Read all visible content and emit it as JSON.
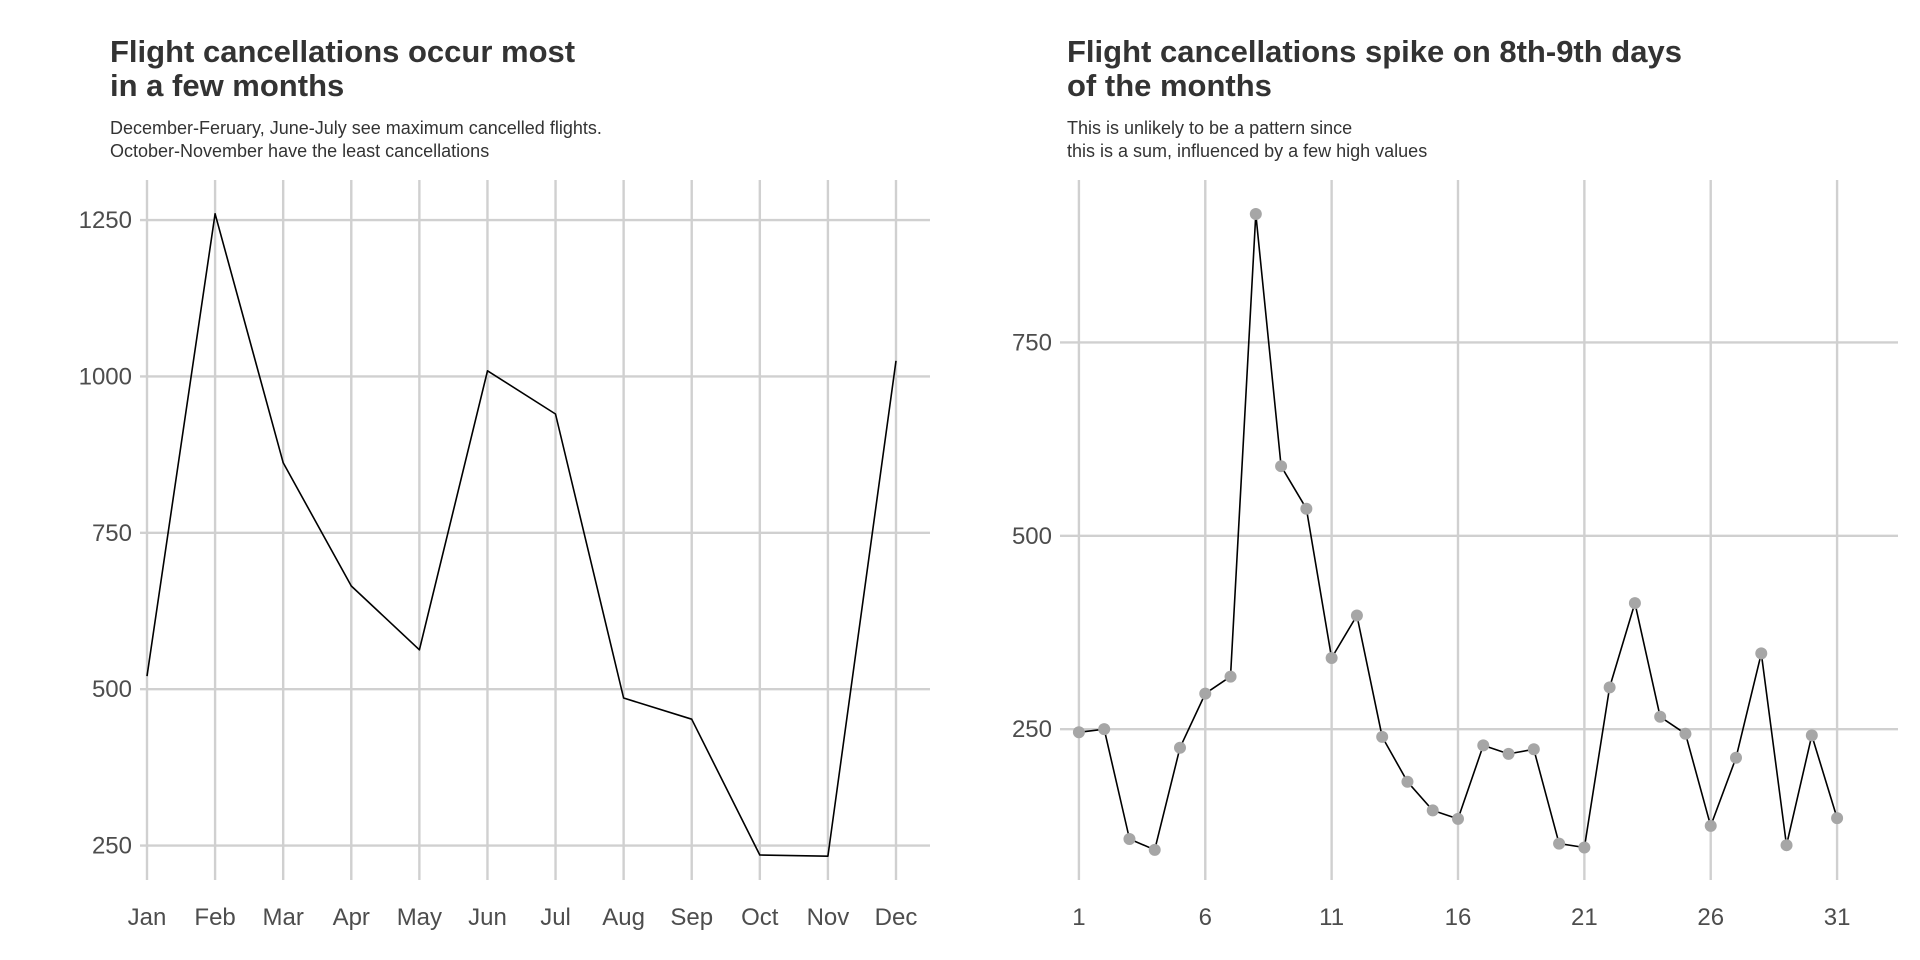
{
  "chart_data": [
    {
      "type": "line",
      "title_lines": [
        "Flight cancellations occur most",
        "in a few months"
      ],
      "subtitle_lines": [
        "December-Feruary, June-July see maximum cancelled flights.",
        "October-November have the least cancellations"
      ],
      "xlabel": "",
      "ylabel": "",
      "categories": [
        "Jan",
        "Feb",
        "Mar",
        "Apr",
        "May",
        "Jun",
        "Jul",
        "Aug",
        "Sep",
        "Oct",
        "Nov",
        "Dec"
      ],
      "values": [
        521,
        1260,
        862,
        665,
        563,
        1009,
        940,
        486,
        452,
        235,
        233,
        1025
      ],
      "y_ticks": [
        250,
        500,
        750,
        1000,
        1250
      ],
      "y_tick_labels": [
        "250",
        "500",
        "750",
        "1000",
        "1250"
      ],
      "ylim": [
        195,
        1314
      ],
      "line_color": "#000000",
      "grid": true,
      "points": false
    },
    {
      "type": "line",
      "title_lines": [
        "Flight cancellations spike on 8th-9th days",
        "of the months"
      ],
      "subtitle_lines": [
        "This is unlikely to be a pattern since",
        "this is a sum, influenced by a few high values"
      ],
      "xlabel": "",
      "ylabel": "",
      "x": [
        1,
        2,
        3,
        4,
        5,
        6,
        7,
        8,
        9,
        10,
        11,
        12,
        13,
        14,
        15,
        16,
        17,
        18,
        19,
        20,
        21,
        22,
        23,
        24,
        25,
        26,
        27,
        28,
        29,
        30,
        31
      ],
      "values": [
        246,
        250,
        108,
        94,
        226,
        296,
        318,
        916,
        590,
        535,
        342,
        397,
        240,
        182,
        145,
        134,
        229,
        218,
        224,
        102,
        97,
        304,
        413,
        266,
        244,
        125,
        213,
        348,
        100,
        242,
        135
      ],
      "x_ticks": [
        1,
        6,
        11,
        16,
        21,
        26,
        31
      ],
      "x_tick_labels": [
        "1",
        "6",
        "11",
        "16",
        "21",
        "26",
        "31"
      ],
      "y_ticks": [
        250,
        500,
        750
      ],
      "y_tick_labels": [
        "250",
        "500",
        "750"
      ],
      "xlim": [
        -0.5,
        32.5
      ],
      "ylim": [
        55,
        960
      ],
      "line_color": "#000000",
      "point_color": "#a6a6a6",
      "grid": true,
      "points": true
    }
  ],
  "grid_color": "#d0d0d0"
}
